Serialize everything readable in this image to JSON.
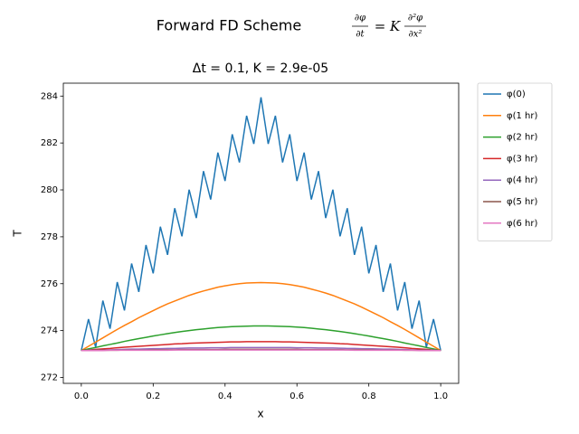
{
  "chart_data": {
    "type": "line",
    "title": "Forward FD Scheme",
    "equation": {
      "lhs_num": "∂φ",
      "lhs_den": "∂t",
      "eq": "= K",
      "rhs_num": "∂²φ",
      "rhs_den": "∂x²"
    },
    "subtitle": "Δt =  0.1, K =  2.9e-05",
    "x_label": "x",
    "y_label": "T",
    "xlim": [
      -0.05,
      1.05
    ],
    "ylim": [
      271.75,
      284.55
    ],
    "xticks": [
      {
        "value": 0,
        "label": "0.0"
      },
      {
        "value": 0.2,
        "label": "0.2"
      },
      {
        "value": 0.4,
        "label": "0.4"
      },
      {
        "value": 0.6,
        "label": "0.6"
      },
      {
        "value": 0.8,
        "label": "0.8"
      },
      {
        "value": 1,
        "label": "1.0"
      }
    ],
    "yticks": [
      272,
      274,
      276,
      278,
      280,
      282,
      284
    ],
    "grid": false,
    "legend": "outside-right",
    "x": [
      0,
      0.02,
      0.04,
      0.06,
      0.08,
      0.1,
      0.12,
      0.14,
      0.16,
      0.18,
      0.2,
      0.22,
      0.24,
      0.26,
      0.28,
      0.3,
      0.32,
      0.34,
      0.36,
      0.38,
      0.4,
      0.42,
      0.44,
      0.46,
      0.48,
      0.5,
      0.52,
      0.54,
      0.56,
      0.58,
      0.6,
      0.62,
      0.64,
      0.66,
      0.68,
      0.7,
      0.72,
      0.74,
      0.76,
      0.78,
      0.8,
      0.82,
      0.84,
      0.86,
      0.88,
      0.9,
      0.92,
      0.94,
      0.96,
      0.98,
      1
    ],
    "series": [
      {
        "name": "φ(0)",
        "color": "#1f77b4",
        "values": [
          273.15,
          274.49,
          273.29,
          275.28,
          274.08,
          276.07,
          274.86,
          276.86,
          275.65,
          277.65,
          276.44,
          278.43,
          277.23,
          279.22,
          278.02,
          280.01,
          278.8,
          280.8,
          279.59,
          281.59,
          280.38,
          282.37,
          281.17,
          283.16,
          281.96,
          283.95,
          281.96,
          283.16,
          281.17,
          282.37,
          280.38,
          281.59,
          279.59,
          280.8,
          278.8,
          280.01,
          278.02,
          279.22,
          277.23,
          278.43,
          276.44,
          277.65,
          275.65,
          276.86,
          274.86,
          276.07,
          274.08,
          275.28,
          273.29,
          274.49,
          273.15
        ]
      },
      {
        "name": "φ(1 hr)",
        "color": "#ff7f0e",
        "values": [
          273.15,
          273.33,
          273.51,
          273.69,
          273.87,
          274.05,
          274.22,
          274.38,
          274.55,
          274.7,
          274.85,
          275,
          275.14,
          275.26,
          275.38,
          275.5,
          275.6,
          275.69,
          275.77,
          275.85,
          275.91,
          275.96,
          276,
          276.03,
          276.04,
          276.05,
          276.04,
          276.03,
          276,
          275.96,
          275.91,
          275.85,
          275.77,
          275.69,
          275.6,
          275.5,
          275.38,
          275.26,
          275.14,
          275,
          274.85,
          274.7,
          274.55,
          274.38,
          274.22,
          274.05,
          273.87,
          273.69,
          273.51,
          273.33,
          273.15
        ]
      },
      {
        "name": "φ(2 hr)",
        "color": "#2ca02c",
        "values": [
          273.15,
          273.22,
          273.28,
          273.35,
          273.41,
          273.47,
          273.54,
          273.6,
          273.66,
          273.71,
          273.77,
          273.82,
          273.87,
          273.92,
          273.96,
          274,
          274.04,
          274.07,
          274.1,
          274.13,
          274.15,
          274.17,
          274.18,
          274.19,
          274.2,
          274.2,
          274.2,
          274.19,
          274.18,
          274.17,
          274.15,
          274.13,
          274.1,
          274.07,
          274.04,
          274,
          273.96,
          273.92,
          273.87,
          273.82,
          273.77,
          273.71,
          273.66,
          273.6,
          273.54,
          273.47,
          273.41,
          273.35,
          273.28,
          273.22,
          273.15
        ]
      },
      {
        "name": "φ(3 hr)",
        "color": "#d62728",
        "values": [
          273.15,
          273.17,
          273.2,
          273.22,
          273.24,
          273.27,
          273.29,
          273.31,
          273.33,
          273.35,
          273.37,
          273.39,
          273.41,
          273.43,
          273.44,
          273.46,
          273.47,
          273.48,
          273.49,
          273.5,
          273.51,
          273.52,
          273.52,
          273.53,
          273.53,
          273.53,
          273.53,
          273.53,
          273.52,
          273.52,
          273.51,
          273.5,
          273.49,
          273.48,
          273.47,
          273.46,
          273.44,
          273.43,
          273.41,
          273.39,
          273.37,
          273.35,
          273.33,
          273.31,
          273.29,
          273.27,
          273.24,
          273.22,
          273.2,
          273.17,
          273.15
        ]
      },
      {
        "name": "φ(4 hr)",
        "color": "#9467bd",
        "values": [
          273.15,
          273.16,
          273.17,
          273.17,
          273.18,
          273.19,
          273.2,
          273.21,
          273.21,
          273.22,
          273.23,
          273.23,
          273.24,
          273.24,
          273.25,
          273.26,
          273.26,
          273.26,
          273.27,
          273.27,
          273.27,
          273.28,
          273.28,
          273.28,
          273.28,
          273.28,
          273.28,
          273.28,
          273.28,
          273.28,
          273.27,
          273.27,
          273.27,
          273.26,
          273.26,
          273.26,
          273.25,
          273.24,
          273.24,
          273.23,
          273.23,
          273.22,
          273.21,
          273.21,
          273.2,
          273.19,
          273.18,
          273.17,
          273.17,
          273.16,
          273.15
        ]
      },
      {
        "name": "φ(5 hr)",
        "color": "#8c564b",
        "values": [
          273.15,
          273.15,
          273.16,
          273.16,
          273.16,
          273.16,
          273.17,
          273.17,
          273.17,
          273.17,
          273.18,
          273.18,
          273.18,
          273.18,
          273.19,
          273.19,
          273.19,
          273.19,
          273.19,
          273.19,
          273.2,
          273.2,
          273.2,
          273.2,
          273.2,
          273.2,
          273.2,
          273.2,
          273.2,
          273.2,
          273.2,
          273.19,
          273.19,
          273.19,
          273.19,
          273.19,
          273.19,
          273.18,
          273.18,
          273.18,
          273.18,
          273.17,
          273.17,
          273.17,
          273.17,
          273.16,
          273.16,
          273.16,
          273.16,
          273.15,
          273.15
        ]
      },
      {
        "name": "φ(6 hr)",
        "color": "#e377c2",
        "values": [
          273.15,
          273.15,
          273.15,
          273.15,
          273.16,
          273.16,
          273.16,
          273.16,
          273.16,
          273.16,
          273.16,
          273.16,
          273.16,
          273.17,
          273.17,
          273.17,
          273.17,
          273.17,
          273.17,
          273.17,
          273.17,
          273.17,
          273.17,
          273.17,
          273.17,
          273.17,
          273.17,
          273.17,
          273.17,
          273.17,
          273.17,
          273.17,
          273.17,
          273.17,
          273.17,
          273.17,
          273.17,
          273.17,
          273.16,
          273.16,
          273.16,
          273.16,
          273.16,
          273.16,
          273.16,
          273.16,
          273.16,
          273.15,
          273.15,
          273.15,
          273.15
        ]
      }
    ]
  }
}
